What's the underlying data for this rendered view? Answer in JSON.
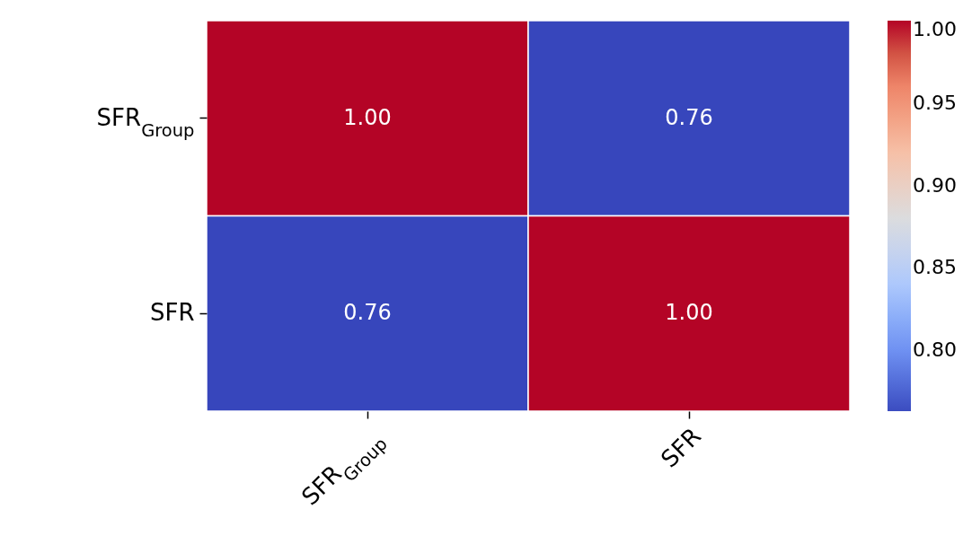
{
  "chart_data": {
    "type": "heatmap",
    "categories": [
      "SFR$_{Group}$",
      "SFR"
    ],
    "y_categories": [
      "SFR$_{Group}$",
      "SFR"
    ],
    "cells": [
      [
        1.0,
        0.76
      ],
      [
        0.76,
        1.0
      ]
    ],
    "cell_labels": [
      [
        "1.00",
        "0.76"
      ],
      [
        "0.76",
        "1.00"
      ]
    ],
    "clim": [
      0.763,
      1.0
    ],
    "cticks": [
      {
        "value": 0.8,
        "label": "0.80"
      },
      {
        "value": 0.85,
        "label": "0.85"
      },
      {
        "value": 0.9,
        "label": "0.90"
      },
      {
        "value": 0.95,
        "label": "0.95"
      },
      {
        "value": 1.0,
        "label": "1.00"
      }
    ]
  }
}
